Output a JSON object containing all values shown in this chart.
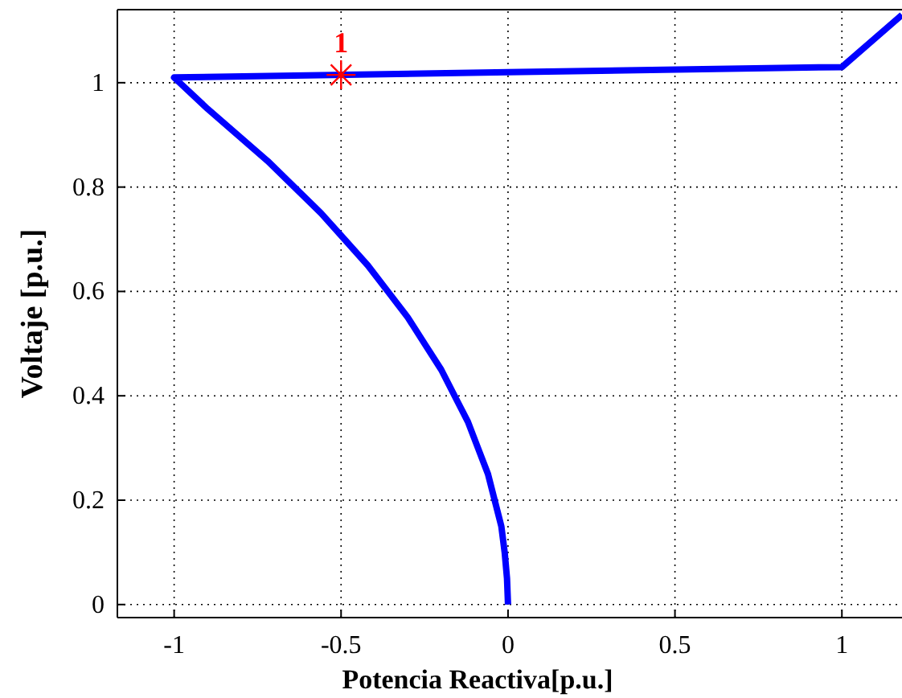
{
  "chart_data": {
    "type": "line",
    "xlabel": "Potencia Reactiva[p.u.]",
    "ylabel": "Voltaje [p.u.]",
    "xlim": [
      -1.17,
      1.18
    ],
    "ylim": [
      -0.025,
      1.14
    ],
    "xticks": [
      -1,
      -0.5,
      0,
      0.5,
      1
    ],
    "yticks": [
      0,
      0.2,
      0.4,
      0.6,
      0.8,
      1
    ],
    "grid": true,
    "line_style": "solid",
    "series": [
      {
        "color": "#0000ff",
        "x": [
          0,
          -0.003,
          -0.01,
          -0.02,
          -0.04,
          -0.06,
          -0.09,
          -0.12,
          -0.16,
          -0.2,
          -0.25,
          -0.3,
          -0.36,
          -0.42,
          -0.49,
          -0.56,
          -0.64,
          -0.72,
          -0.81,
          -0.9,
          -1,
          0,
          1,
          1.18
        ],
        "values": [
          0,
          0.05,
          0.1,
          0.15,
          0.2,
          0.25,
          0.3,
          0.35,
          0.4,
          0.45,
          0.5,
          0.55,
          0.6,
          0.65,
          0.7,
          0.75,
          0.8,
          0.85,
          0.9,
          0.95,
          1.01,
          1.02,
          1.03,
          1.13
        ]
      },
      {
        "type": "scatter",
        "marker": "cross",
        "color": "#ff0000",
        "x": [
          -0.5
        ],
        "values": [
          1.015
        ]
      }
    ],
    "annotations": [
      {
        "text": "1",
        "x": -0.5,
        "y": 1.015
      }
    ]
  }
}
